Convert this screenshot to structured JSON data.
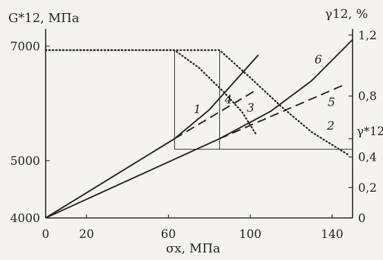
{
  "chart_data": {
    "type": "line",
    "x_axis": {
      "label": "σx, МПа",
      "min": 0,
      "max": 150,
      "ticks": [
        0,
        20,
        60,
        100,
        140
      ]
    },
    "y_left": {
      "label": "G*12, МПа",
      "min": 4000,
      "max": 7300,
      "ticks": [
        4000,
        5000,
        7000
      ]
    },
    "y_right": {
      "label": "γ12, %",
      "min": 0,
      "max": 1.24,
      "ticks": [
        "0",
        "0,2",
        "0,4",
        "0,8",
        "1,2"
      ],
      "tick_values": [
        0,
        0.2,
        0.4,
        0.8,
        1.2
      ],
      "marker_label": "γ*12",
      "marker_value": 0.52
    },
    "guides": [
      {
        "from": [
          63,
          5200
        ],
        "to": [
          63,
          6930
        ]
      },
      {
        "from": [
          85,
          5200
        ],
        "to": [
          85,
          6930
        ]
      },
      {
        "from": [
          63,
          5200
        ],
        "to": [
          150,
          5200
        ]
      }
    ],
    "series": [
      {
        "name": "1",
        "axis": "left",
        "style": "dotted",
        "x": [
          0,
          63,
          75,
          87,
          96,
          103
        ],
        "y": [
          6930,
          6930,
          6620,
          6200,
          5850,
          5450
        ]
      },
      {
        "name": "2",
        "axis": "left",
        "style": "dotted",
        "x": [
          0,
          63,
          85,
          100,
          115,
          130,
          148
        ],
        "y": [
          6930,
          6930,
          6930,
          6450,
          5950,
          5500,
          5100
        ]
      },
      {
        "name": "3",
        "axis": "right",
        "style": "dashed",
        "x": [
          63,
          103
        ],
        "y": [
          0.52,
          0.84
        ]
      },
      {
        "name": "4",
        "axis": "right",
        "style": "solid",
        "x": [
          0,
          63,
          80,
          104
        ],
        "y": [
          0,
          0.52,
          0.71,
          1.07
        ]
      },
      {
        "name": "5",
        "axis": "right",
        "style": "dashed",
        "x": [
          85,
          147
        ],
        "y": [
          0.52,
          0.88
        ]
      },
      {
        "name": "6",
        "axis": "right",
        "style": "solid",
        "x": [
          0,
          85,
          110,
          130,
          150
        ],
        "y": [
          0,
          0.52,
          0.7,
          0.9,
          1.17
        ]
      }
    ]
  }
}
